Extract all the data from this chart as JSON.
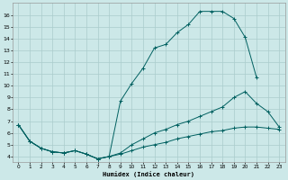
{
  "bg_color": "#cce8e8",
  "grid_color": "#aacccc",
  "line_color": "#006060",
  "xlabel": "Humidex (Indice chaleur)",
  "xlim": [
    -0.5,
    23.5
  ],
  "ylim": [
    3.5,
    17.0
  ],
  "xticks": [
    0,
    1,
    2,
    3,
    4,
    5,
    6,
    7,
    8,
    9,
    10,
    11,
    12,
    13,
    14,
    15,
    16,
    17,
    18,
    19,
    20,
    21,
    22,
    23
  ],
  "yticks": [
    4,
    5,
    6,
    7,
    8,
    9,
    10,
    11,
    12,
    13,
    14,
    15,
    16
  ],
  "line1_x": [
    0,
    1,
    2,
    3,
    4,
    5,
    6,
    7,
    8,
    9,
    10,
    11,
    12,
    13,
    14,
    15,
    16,
    17,
    18,
    19,
    20,
    21
  ],
  "line1_y": [
    6.7,
    5.3,
    4.7,
    4.4,
    4.3,
    4.5,
    4.2,
    3.8,
    4.0,
    8.7,
    10.2,
    11.5,
    13.2,
    13.5,
    14.5,
    15.2,
    16.3,
    16.3,
    16.3,
    15.7,
    14.1,
    10.7
  ],
  "line2_x": [
    0,
    1,
    2,
    3,
    4,
    5,
    6,
    7,
    8,
    9,
    10,
    11,
    12,
    13,
    14,
    15,
    16,
    17,
    18,
    19,
    20,
    21,
    22,
    23
  ],
  "line2_y": [
    6.7,
    5.3,
    4.7,
    4.4,
    4.3,
    4.5,
    4.2,
    3.8,
    4.0,
    4.3,
    5.0,
    5.5,
    6.0,
    6.3,
    6.7,
    7.0,
    7.4,
    7.8,
    8.2,
    9.0,
    9.5,
    8.5,
    7.8,
    6.5
  ],
  "line3_x": [
    0,
    1,
    2,
    3,
    4,
    5,
    6,
    7,
    8,
    9,
    10,
    11,
    12,
    13,
    14,
    15,
    16,
    17,
    18,
    19,
    20,
    21,
    22,
    23
  ],
  "line3_y": [
    6.7,
    5.3,
    4.7,
    4.4,
    4.3,
    4.5,
    4.2,
    3.8,
    4.0,
    4.2,
    4.5,
    4.8,
    5.0,
    5.2,
    5.5,
    5.7,
    5.9,
    6.1,
    6.2,
    6.4,
    6.5,
    6.5,
    6.4,
    6.3
  ]
}
